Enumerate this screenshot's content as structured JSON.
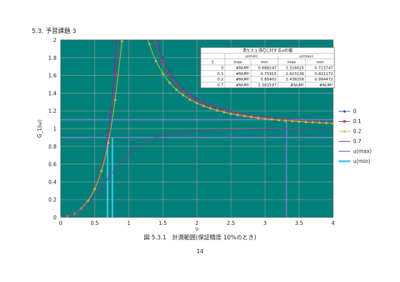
{
  "page": {
    "section_heading": "5.3. 予習課題 3",
    "figure_caption": "図 5.3.1　計測範囲(保証精度 10%のとき)",
    "page_number": "14"
  },
  "chart_data": {
    "type": "line",
    "xlabel": "u",
    "ylabel": "G_1(ω)",
    "xlim": [
      0,
      4
    ],
    "ylim": [
      0,
      2
    ],
    "xticks": [
      "0",
      "0.5",
      "1",
      "1.5",
      "2",
      "2.5",
      "3",
      "3.5",
      "4"
    ],
    "yticks": [
      "0",
      "0.2",
      "0.4",
      "0.6",
      "0.8",
      "1",
      "1.2",
      "1.4",
      "1.6",
      "1.8",
      "2"
    ],
    "grid": true,
    "background": "#00807a",
    "legend_position": "right",
    "legend": [
      "0",
      "0.1",
      "0.2",
      "0.7",
      "u(max)",
      "u(min)"
    ],
    "series": [
      {
        "name": "0",
        "zeta": 0,
        "color": "#2f4fa8",
        "marker": "diamond"
      },
      {
        "name": "0.1",
        "zeta": 0.1,
        "color": "#c0306a",
        "marker": "square"
      },
      {
        "name": "0.2",
        "zeta": 0.2,
        "color": "#c8c03a",
        "marker": "triangle"
      },
      {
        "name": "0.7",
        "zeta": 0.7,
        "color": "#7b3a96",
        "marker": "none"
      }
    ],
    "reference_lines": {
      "horizontal": [
        0.9,
        1.1
      ],
      "u_max": {
        "name": "u(max)",
        "color": "#7d7dd6",
        "x": 3.316625,
        "y": [
          0,
          1.1
        ]
      },
      "u_min": [
        {
          "name": "u(min)",
          "color": "#33c6ea",
          "x": 0.688247,
          "y": [
            0,
            0.9
          ]
        },
        {
          "name": "u(min)",
          "color": "#33c6ea",
          "x": 0.75915,
          "y": [
            0,
            0.9
          ]
        }
      ]
    },
    "table": {
      "title": "表5.3.1 各ζに対するuの値",
      "group_headers": [
        "u(min)",
        "u(max)"
      ],
      "columns": [
        "ζ",
        "max",
        "min",
        "max",
        "min"
      ],
      "rows": [
        [
          "0",
          "#NUM!",
          "0.688247",
          "3.316625",
          "0.723747"
        ],
        [
          "0.1",
          "#NUM!",
          "0.75915",
          "2.923136",
          "0.821172"
        ],
        [
          "0.2",
          "#NUM!",
          "0.85402",
          "2.438256",
          "0.984472"
        ],
        [
          "0.7",
          "#NUM!",
          "2.083597",
          "#NUM!",
          "#NUM!"
        ]
      ]
    }
  }
}
